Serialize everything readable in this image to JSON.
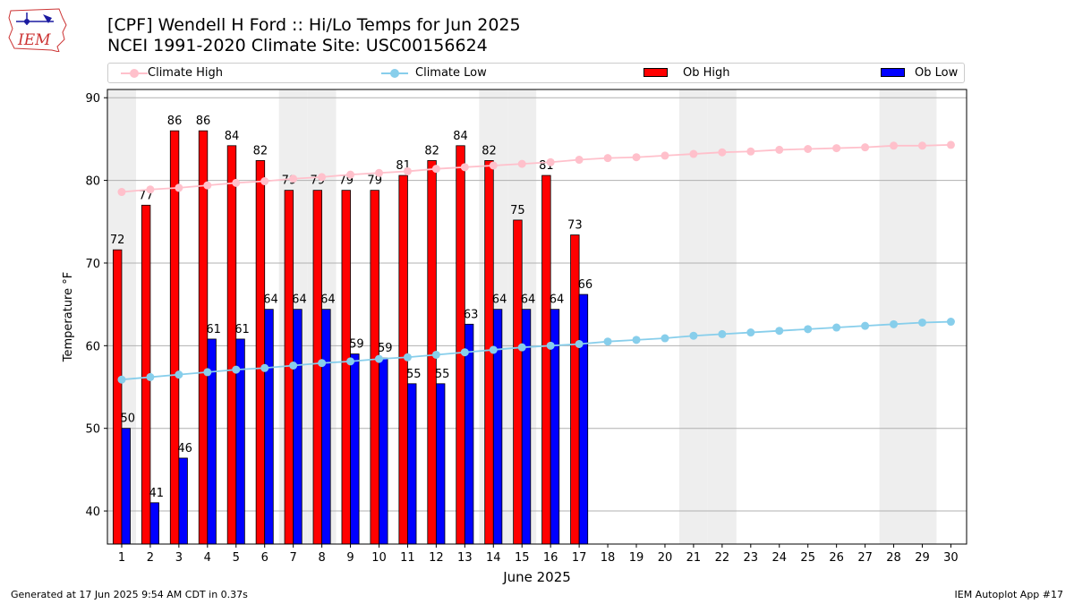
{
  "header": {
    "title_line1": "[CPF] Wendell H Ford :: Hi/Lo Temps for Jun 2025",
    "title_line2": "NCEI 1991-2020 Climate Site: USC00156624",
    "logo_text": "IEM"
  },
  "legend": {
    "climate_high": "Climate High",
    "climate_low": "Climate Low",
    "ob_high": "Ob High",
    "ob_low": "Ob Low",
    "placement": "top"
  },
  "footer": {
    "generated": "Generated at 17 Jun 2025 9:54 AM CDT in 0.37s",
    "app": "IEM Autoplot App #17"
  },
  "colors": {
    "climate_high": "#ffc0cb",
    "climate_low": "#87ceeb",
    "ob_high": "#ff0000",
    "ob_low": "#0000ff",
    "weekend_shade": "#eeeeee",
    "grid": "#b0b0b0"
  },
  "chart_data": {
    "type": "bar",
    "xlabel": "June 2025",
    "ylabel": "Temperature °F",
    "ylim": [
      36,
      91
    ],
    "yticks": [
      40,
      50,
      60,
      70,
      80,
      90
    ],
    "x": [
      1,
      2,
      3,
      4,
      5,
      6,
      7,
      8,
      9,
      10,
      11,
      12,
      13,
      14,
      15,
      16,
      17,
      18,
      19,
      20,
      21,
      22,
      23,
      24,
      25,
      26,
      27,
      28,
      29,
      30
    ],
    "grid": "horizontal",
    "weekend_days": [
      1,
      7,
      8,
      14,
      15,
      21,
      22,
      28,
      29
    ],
    "ob_high": [
      71.6,
      77,
      86,
      86,
      84.2,
      82.4,
      78.8,
      78.8,
      78.8,
      78.8,
      80.6,
      82.4,
      84.2,
      82.4,
      75.2,
      80.6,
      73.4
    ],
    "ob_high_labels": [
      "72",
      "77",
      "86",
      "86",
      "84",
      "82",
      "79",
      "79",
      "79",
      "79",
      "81",
      "82",
      "84",
      "82",
      "75",
      "81",
      "73"
    ],
    "ob_low": [
      50,
      41,
      46.4,
      60.8,
      60.8,
      64.4,
      64.4,
      64.4,
      59,
      58.5,
      55.4,
      55.4,
      62.6,
      64.4,
      64.4,
      64.4,
      66.2
    ],
    "ob_low_labels": [
      "50",
      "41",
      "46",
      "61",
      "61",
      "64",
      "64",
      "64",
      "59",
      "59",
      "55",
      "55",
      "63",
      "64",
      "64",
      "64",
      "66"
    ],
    "climate_high": [
      78.6,
      78.9,
      79.1,
      79.4,
      79.7,
      79.9,
      80.2,
      80.4,
      80.7,
      80.9,
      81.1,
      81.4,
      81.6,
      81.8,
      82.0,
      82.2,
      82.5,
      82.7,
      82.8,
      83.0,
      83.2,
      83.4,
      83.5,
      83.7,
      83.8,
      83.9,
      84.0,
      84.2,
      84.2,
      84.3
    ],
    "climate_low": [
      55.9,
      56.2,
      56.5,
      56.8,
      57.1,
      57.3,
      57.6,
      57.9,
      58.1,
      58.4,
      58.6,
      58.9,
      59.2,
      59.5,
      59.8,
      60.0,
      60.2,
      60.5,
      60.7,
      60.9,
      61.2,
      61.4,
      61.6,
      61.8,
      62.0,
      62.2,
      62.4,
      62.6,
      62.8,
      62.9
    ]
  }
}
